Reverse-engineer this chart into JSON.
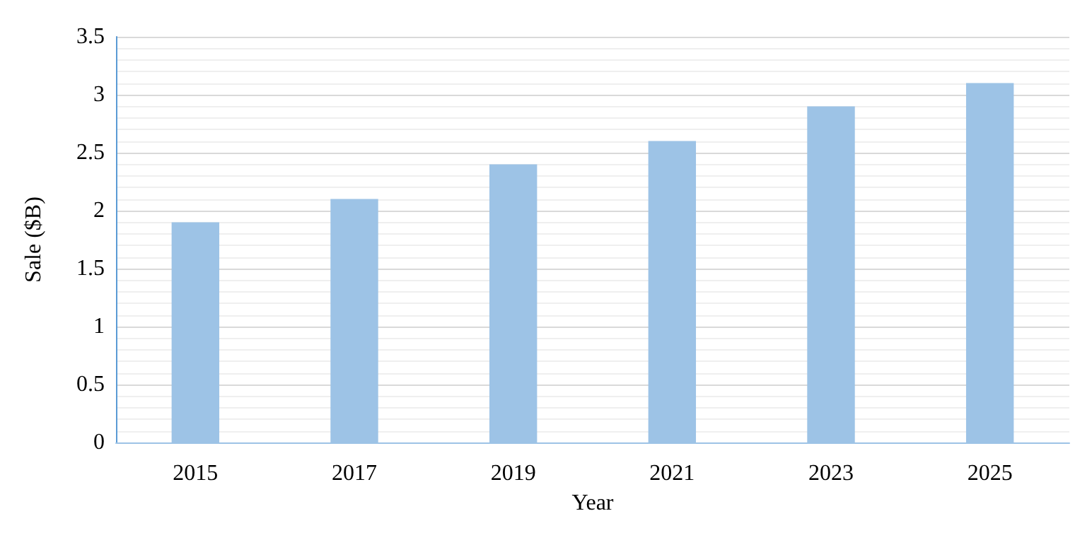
{
  "chart_data": {
    "type": "bar",
    "xlabel": "Year",
    "ylabel": "Sale ($B)",
    "categories": [
      "2015",
      "2017",
      "2019",
      "2021",
      "2023",
      "2025"
    ],
    "values": [
      1.9,
      2.1,
      2.4,
      2.6,
      2.9,
      3.1
    ],
    "color": "#9dc3e6",
    "ylim": [
      0,
      3.5
    ],
    "yticks": [
      0,
      0.5,
      1,
      1.5,
      2,
      2.5,
      3,
      3.5
    ],
    "grid": "y"
  }
}
